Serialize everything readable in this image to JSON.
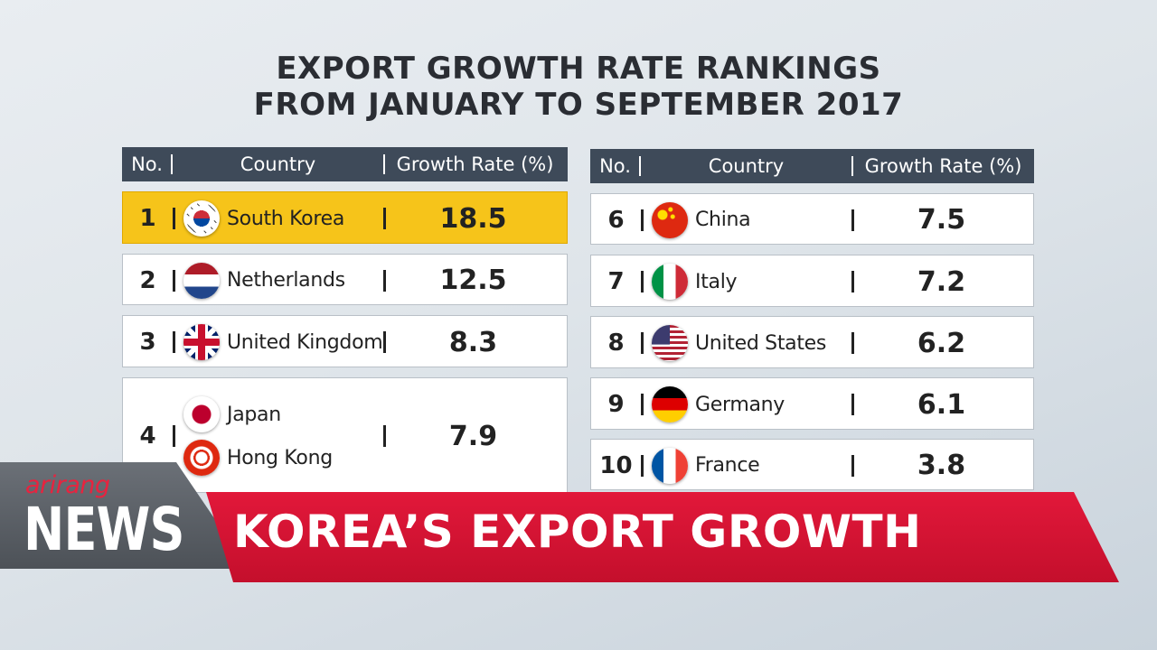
{
  "title": {
    "line1": "EXPORT GROWTH RATE RANKINGS",
    "line2": "FROM JANUARY TO SEPTEMBER 2017"
  },
  "tables": [
    {
      "header": [
        "No.",
        "Country",
        "Growth Rate (%)"
      ],
      "rows": [
        {
          "rank": 1,
          "countries": [
            "South Korea"
          ],
          "rate": 18.5
        },
        {
          "rank": 2,
          "countries": [
            "Netherlands"
          ],
          "rate": 12.5
        },
        {
          "rank": 3,
          "countries": [
            "United Kingdom"
          ],
          "rate": 8.3
        },
        {
          "rank": 4,
          "countries": [
            "Japan",
            "Hong Kong"
          ],
          "rate": 7.9
        }
      ]
    },
    {
      "header": [
        "No.",
        "Country",
        "Growth Rate (%)"
      ],
      "rows": [
        {
          "rank": 6,
          "countries": [
            "China"
          ],
          "rate": 7.5
        },
        {
          "rank": 7,
          "countries": [
            "Italy"
          ],
          "rate": 7.2
        },
        {
          "rank": 8,
          "countries": [
            "United States"
          ],
          "rate": 6.2
        },
        {
          "rank": 9,
          "countries": [
            "Germany"
          ],
          "rate": 6.1
        },
        {
          "rank": 10,
          "countries": [
            "France"
          ],
          "rate": 3.8
        }
      ]
    }
  ],
  "banner": {
    "brand": "arirang",
    "program": "NEWS",
    "headline": "KOREA’S EXPORT GROWTH"
  }
}
